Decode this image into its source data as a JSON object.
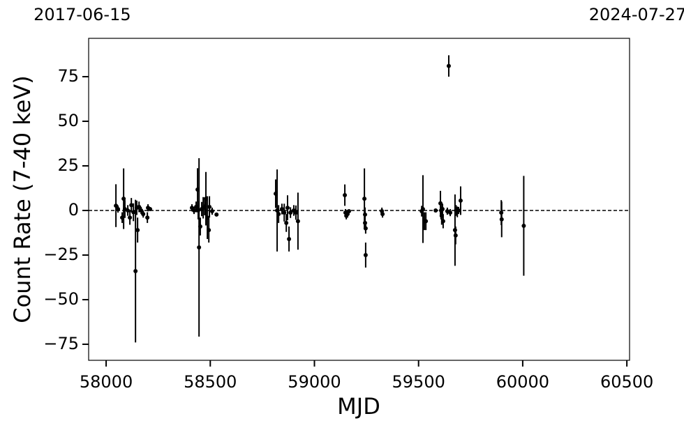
{
  "chart_data": {
    "type": "errorbar-scatter",
    "xlabel": "MJD",
    "ylabel": "Count Rate (7-40 keV)",
    "top_labels": [
      {
        "value": 57919,
        "label": "2017-06-15"
      },
      {
        "value": 60518,
        "label": "2024-07-27"
      }
    ],
    "xlim": [
      57916,
      60513
    ],
    "ylim": [
      -84,
      96.5
    ],
    "xticks": [
      58000,
      58500,
      59000,
      59500,
      60000,
      60500
    ],
    "yticks": [
      {
        "value": -75,
        "label": "−75"
      },
      {
        "value": -50,
        "label": "−50"
      },
      {
        "value": -25,
        "label": "−25"
      },
      0,
      25,
      50,
      75
    ],
    "hline": 0,
    "series": [
      {
        "color": "#000000",
        "x": [
          58047,
          58057,
          58077,
          58084,
          58090,
          58104,
          58114,
          58121,
          58131,
          58141,
          58147,
          58151,
          58158,
          58168,
          58178,
          58198,
          58201,
          58211,
          58412,
          58422,
          58432,
          58439,
          58442,
          58446,
          58452,
          58459,
          58466,
          58473,
          58479,
          58486,
          58493,
          58496,
          58509,
          58530,
          58814,
          58821,
          58828,
          58844,
          58855,
          58865,
          58871,
          58878,
          58885,
          58901,
          58911,
          58921,
          59146,
          59149,
          59153,
          59159,
          59166,
          59240,
          59243,
          59243,
          59246,
          59246,
          59324,
          59327,
          59515,
          59521,
          59528,
          59535,
          59582,
          59605,
          59608,
          59611,
          59615,
          59618,
          59638,
          59645,
          59652,
          59675,
          59678,
          59680,
          59686,
          59692,
          59702,
          59897,
          59899,
          60005
        ],
        "y": [
          2.7,
          0.8,
          -4,
          6.6,
          0.8,
          0,
          -4,
          3,
          -1,
          -34,
          1.5,
          -11,
          2,
          0,
          -2,
          -4,
          1.5,
          0.8,
          1.5,
          0,
          2,
          11.7,
          0,
          -20.7,
          -9,
          0.8,
          1.5,
          2.3,
          6.6,
          -4,
          -11,
          2,
          -0.4,
          -2.3,
          9.4,
          0,
          -2,
          0.8,
          -1.2,
          -7,
          1.5,
          -16,
          -1.2,
          0,
          -1.2,
          -6,
          8.6,
          -1.2,
          -3,
          -2,
          -0.4,
          6.6,
          -2.3,
          -7,
          -10,
          -25,
          -0.4,
          -2,
          -0.4,
          0.8,
          -6,
          -6,
          0,
          4,
          0,
          -3,
          0.8,
          -6,
          -0.4,
          81,
          -1.2,
          -11,
          -14,
          0,
          -0.8,
          0,
          5.5,
          -1.2,
          -5,
          -8.6
        ],
        "err": [
          12,
          2,
          3,
          17,
          5,
          3,
          4,
          4,
          5,
          40,
          4,
          7,
          3,
          2,
          2,
          3,
          2,
          1,
          2,
          2,
          3,
          12,
          5,
          50,
          5,
          4,
          6,
          5,
          15,
          12,
          7,
          6,
          2,
          1,
          8,
          23,
          5,
          3,
          5,
          5,
          7,
          7,
          3,
          3,
          4,
          16,
          6,
          2,
          2,
          2,
          1,
          17,
          4,
          4,
          3,
          7,
          2,
          2,
          3,
          19,
          5,
          5,
          1,
          7,
          5,
          5,
          3,
          4,
          2,
          6,
          2,
          20,
          5,
          3,
          3,
          2,
          8,
          7,
          10,
          28
        ]
      }
    ]
  }
}
